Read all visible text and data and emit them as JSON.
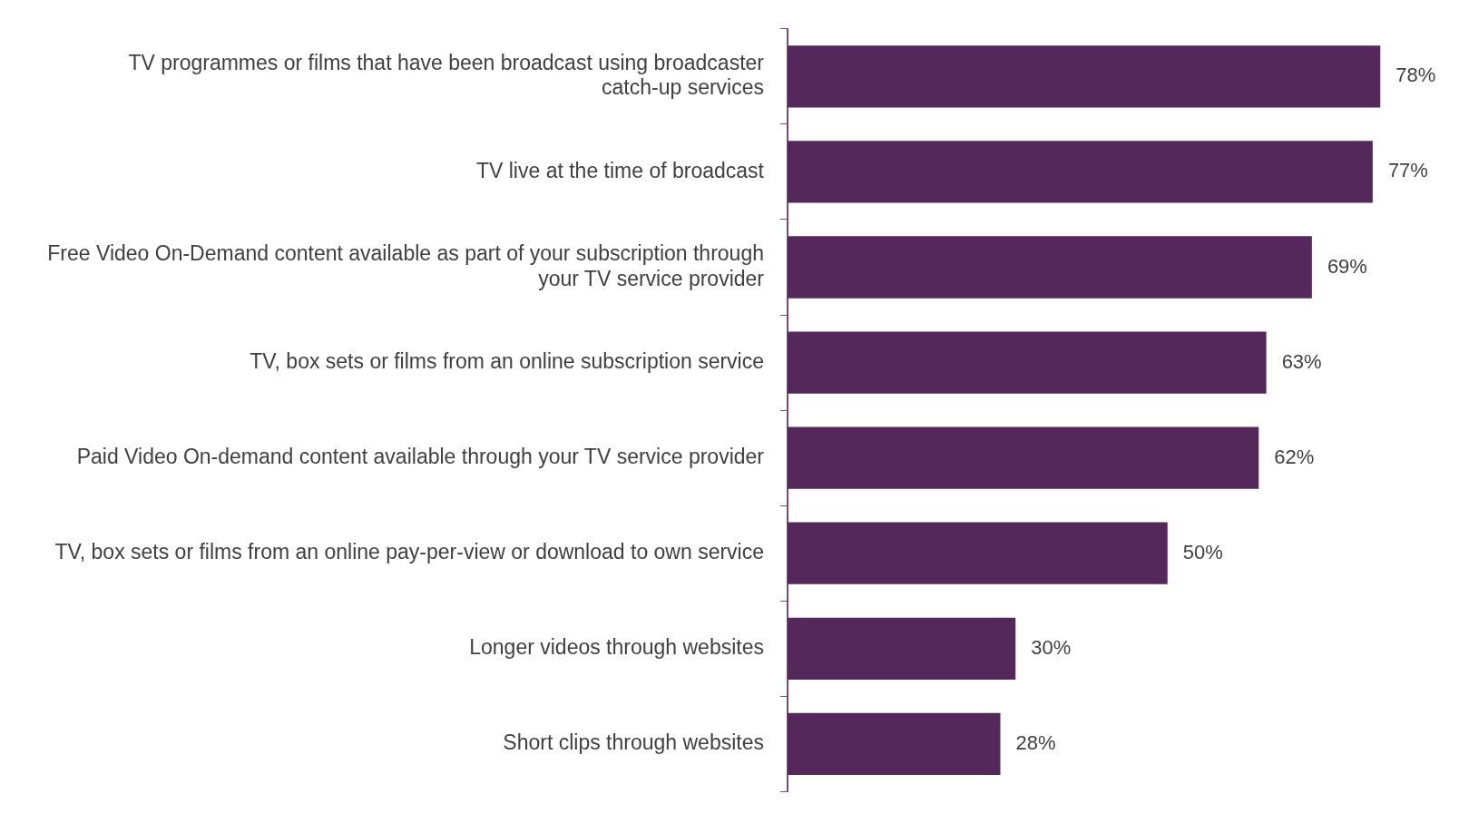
{
  "chart_data": {
    "type": "bar",
    "orientation": "horizontal",
    "categories": [
      "TV programmes or films that have been broadcast using broadcaster catch-up services",
      "TV live at the time of broadcast",
      "Free Video On-Demand content available as part of your subscription through your TV service provider",
      "TV, box sets or films from an online subscription service",
      "Paid Video On-demand content available through your TV service provider",
      "TV, box sets or films from an online pay-per-view or download to own service",
      "Longer videos through websites",
      "Short clips through websites"
    ],
    "values": [
      78,
      77,
      69,
      63,
      62,
      50,
      30,
      28
    ],
    "value_labels": [
      "78%",
      "77%",
      "69%",
      "63%",
      "62%",
      "50%",
      "30%",
      "28%"
    ],
    "color": "#54285a"
  }
}
